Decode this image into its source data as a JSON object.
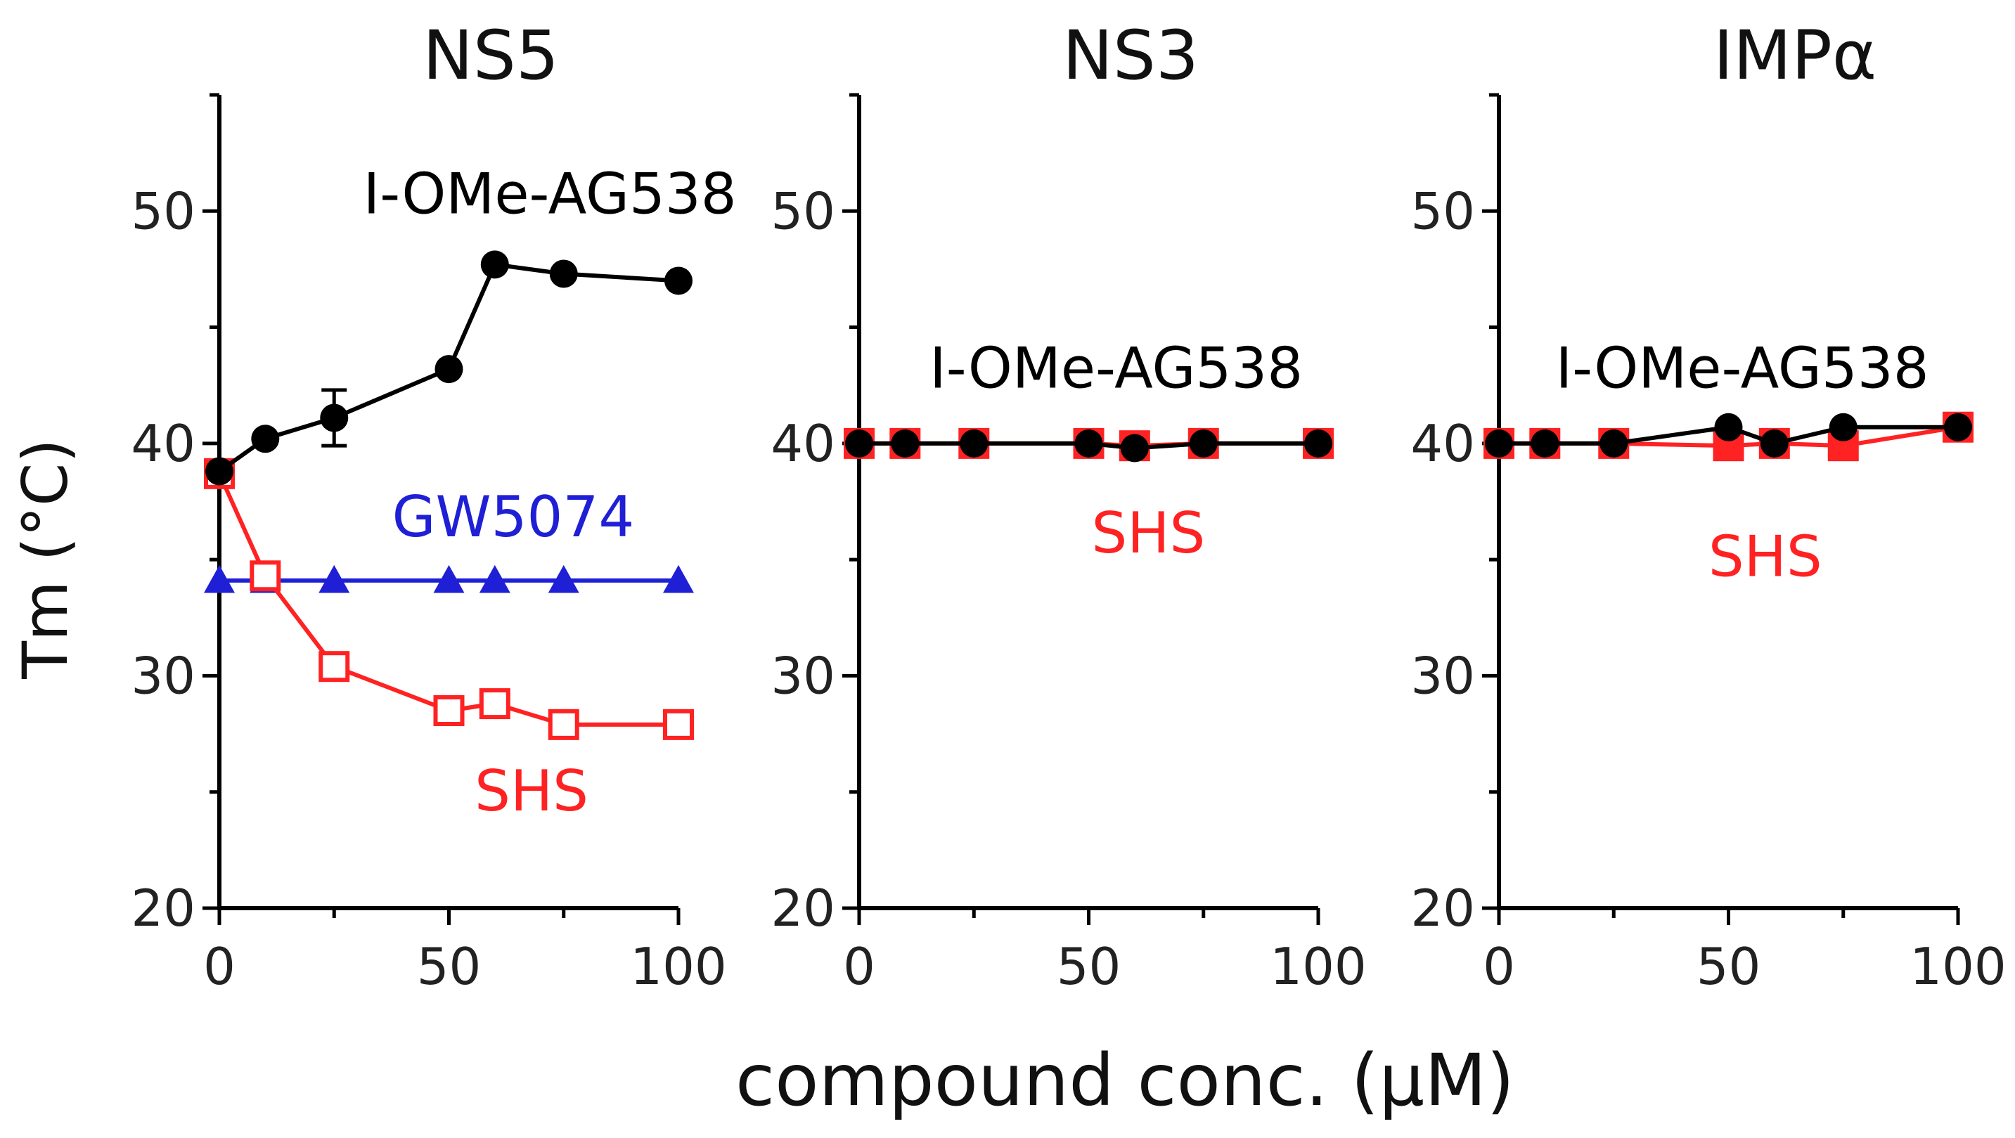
{
  "figure": {
    "xlabel": "compound conc. (μM)",
    "ylabel": "Tm (°C)"
  },
  "chart_data": [
    {
      "type": "line",
      "title": "NS5",
      "xlim": [
        0,
        100
      ],
      "ylim": [
        20,
        55
      ],
      "xticks": [
        0,
        50,
        100
      ],
      "yticks": [
        20,
        30,
        40,
        50
      ],
      "grid": false,
      "series": [
        {
          "name": "I-OMe-AG538",
          "color": "#000000",
          "marker": "circle-filled",
          "x": [
            0,
            10,
            25,
            50,
            60,
            75,
            100
          ],
          "y": [
            38.8,
            40.2,
            41.1,
            43.2,
            47.7,
            47.3,
            47.0
          ],
          "errors": [
            0,
            0,
            1.2,
            0,
            0,
            0,
            0
          ],
          "label_x": 72,
          "label_y": 49.9
        },
        {
          "name": "GW5074",
          "color": "#1f1fd6",
          "marker": "triangle-filled",
          "x": [
            0,
            10,
            25,
            50,
            60,
            75,
            100
          ],
          "y": [
            34.1,
            34.1,
            34.1,
            34.1,
            34.1,
            34.1,
            34.1
          ],
          "label_x": 64,
          "label_y": 36.0
        },
        {
          "name": "SHS",
          "color": "#ff2222",
          "marker": "square-open",
          "x": [
            0,
            10,
            25,
            50,
            60,
            75,
            100
          ],
          "y": [
            38.7,
            34.3,
            30.4,
            28.5,
            28.8,
            27.9,
            27.9
          ],
          "label_x": 68,
          "label_y": 24.2
        }
      ]
    },
    {
      "type": "line",
      "title": "NS3",
      "xlim": [
        0,
        100
      ],
      "ylim": [
        20,
        55
      ],
      "xticks": [
        0,
        50,
        100
      ],
      "yticks": [
        20,
        30,
        40,
        50
      ],
      "grid": false,
      "series": [
        {
          "name": "I-OMe-AG538",
          "color": "#000000",
          "marker": "circle-filled",
          "x": [
            0,
            10,
            25,
            50,
            60,
            75,
            100
          ],
          "y": [
            40.0,
            40.0,
            40.0,
            40.0,
            39.8,
            40.0,
            40.0
          ],
          "label_x": 56,
          "label_y": 42.4
        },
        {
          "name": "SHS",
          "color": "#ff2222",
          "marker": "square-filled",
          "x": [
            0,
            10,
            25,
            50,
            60,
            75,
            100
          ],
          "y": [
            40.0,
            40.0,
            40.0,
            40.0,
            39.9,
            40.0,
            40.0
          ],
          "label_x": 63,
          "label_y": 35.3
        }
      ]
    },
    {
      "type": "line",
      "title": "IMPα",
      "xlim": [
        0,
        100
      ],
      "ylim": [
        20,
        55
      ],
      "xticks": [
        0,
        50,
        100
      ],
      "yticks": [
        20,
        30,
        40,
        50
      ],
      "grid": false,
      "series": [
        {
          "name": "I-OMe-AG538",
          "color": "#000000",
          "marker": "circle-filled",
          "x": [
            0,
            10,
            25,
            50,
            60,
            75,
            100
          ],
          "y": [
            40.0,
            40.0,
            40.0,
            40.7,
            40.0,
            40.7,
            40.7
          ],
          "label_x": 53,
          "label_y": 42.4
        },
        {
          "name": "SHS",
          "color": "#ff2222",
          "marker": "square-filled",
          "x": [
            0,
            10,
            25,
            50,
            60,
            75,
            100
          ],
          "y": [
            40.0,
            40.0,
            40.0,
            39.9,
            40.0,
            39.9,
            40.7
          ],
          "label_x": 58,
          "label_y": 34.3
        }
      ]
    }
  ]
}
